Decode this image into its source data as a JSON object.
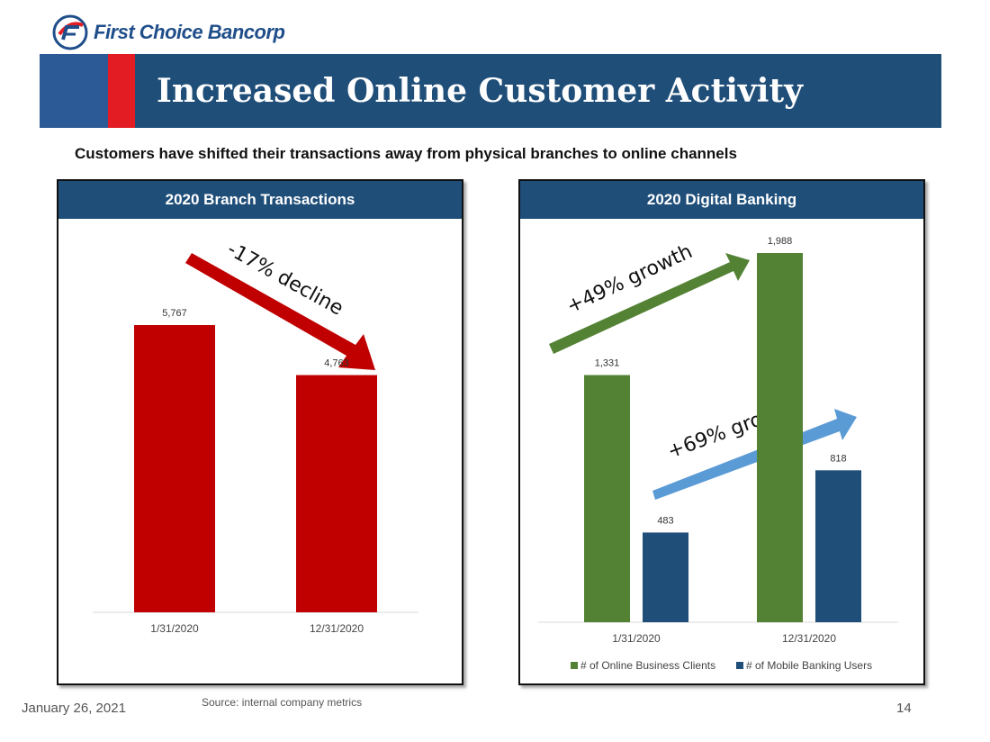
{
  "brand": {
    "name": "First Choice Bancorp",
    "logo_icon": "fcb-logo-icon"
  },
  "slide": {
    "title": "Increased Online Customer Activity",
    "subtitle": "Customers have shifted their transactions away from physical branches to online channels"
  },
  "footer": {
    "date": "January 26, 2021",
    "source": "Source:  internal company metrics",
    "page": "14"
  },
  "colors": {
    "navy": "#1f4e79",
    "red": "#c00000",
    "green": "#548235",
    "arrow_blue": "#5b9bd5"
  },
  "chart_data": [
    {
      "type": "bar",
      "title": "2020 Branch Transactions",
      "categories": [
        "1/31/2020",
        "12/31/2020"
      ],
      "series": [
        {
          "values": [
            5767,
            4763
          ],
          "labels": [
            "5,767",
            "4,763"
          ],
          "color": "#c00000"
        }
      ],
      "annotation": "-17% decline",
      "legend": "none",
      "grid": false
    },
    {
      "type": "bar",
      "title": "2020 Digital Banking",
      "categories": [
        "1/31/2020",
        "12/31/2020"
      ],
      "series": [
        {
          "name": "# of Online Business Clients",
          "values": [
            1331,
            1988
          ],
          "labels": [
            "1,331",
            "1,988"
          ],
          "color": "#548235"
        },
        {
          "name": "# of Mobile Banking Users",
          "values": [
            483,
            818
          ],
          "labels": [
            "483",
            "818"
          ],
          "color": "#1f4e79"
        }
      ],
      "annotations": [
        "+49% growth",
        "+69% growth"
      ],
      "legend": "bottom",
      "grid": false
    }
  ]
}
